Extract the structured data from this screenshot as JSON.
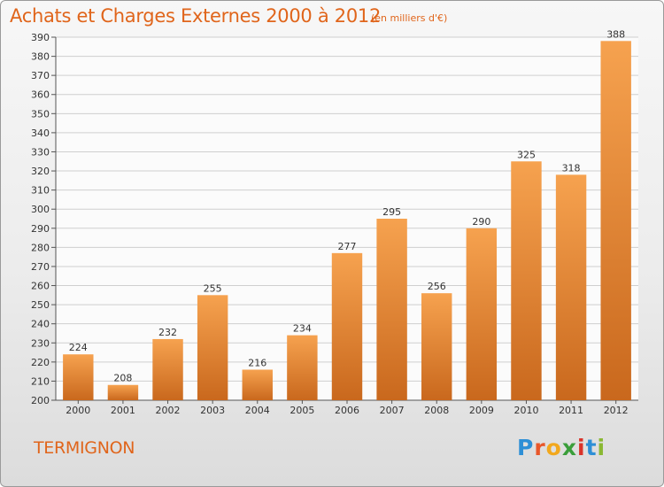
{
  "title": "Achats et Charges Externes 2000 à 2012",
  "unit": "(en milliers d'€)",
  "commune": "TERMIGNON",
  "logo": {
    "letters": [
      "P",
      "r",
      "o",
      "x",
      "i",
      "t",
      "i"
    ],
    "colors": [
      "#2e8fd6",
      "#e8572a",
      "#f2a81d",
      "#3a9e3a",
      "#d9332a",
      "#2e8fd6",
      "#8ab833"
    ]
  },
  "colors": {
    "bar_light": "#f6a24f",
    "bar_dark": "#c9681d",
    "text_accent": "#e0651b"
  },
  "chart_data": {
    "type": "bar",
    "categories": [
      "2000",
      "2001",
      "2002",
      "2003",
      "2004",
      "2005",
      "2006",
      "2007",
      "2008",
      "2009",
      "2010",
      "2011",
      "2012"
    ],
    "values": [
      224,
      208,
      232,
      255,
      216,
      234,
      277,
      295,
      256,
      290,
      325,
      318,
      388
    ],
    "ylim": [
      200,
      390
    ],
    "ytick_step": 10,
    "grid": true
  }
}
